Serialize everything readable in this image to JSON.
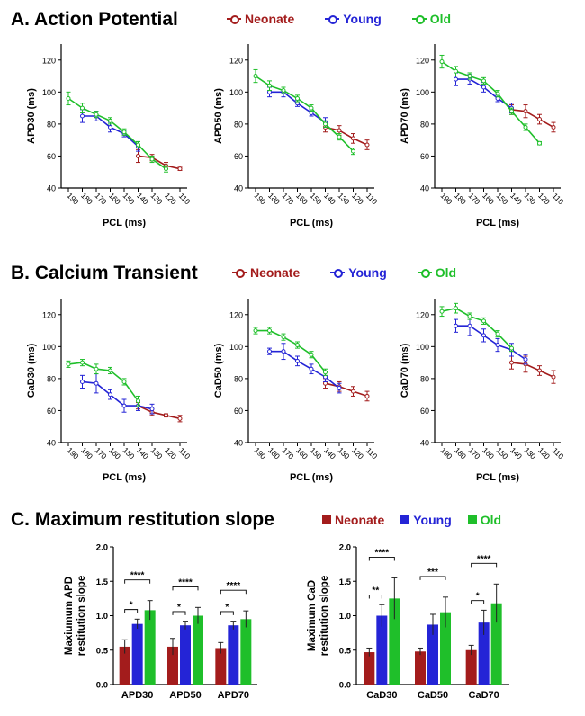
{
  "colors": {
    "neonate": "#a31c1c",
    "young": "#2424d6",
    "old": "#1fbf2a"
  },
  "sections": {
    "a": {
      "title": "A. Action Potential"
    },
    "b": {
      "title": "B. Calcium Transient"
    },
    "c": {
      "title": "C. Maximum restitution slope"
    }
  },
  "legends": {
    "lines": [
      {
        "label": "Neonate",
        "color": "#a31c1c"
      },
      {
        "label": "Young",
        "color": "#2424d6"
      },
      {
        "label": "Old",
        "color": "#1fbf2a"
      }
    ],
    "bars": [
      {
        "label": "Neonate",
        "color": "#a31c1c"
      },
      {
        "label": "Young",
        "color": "#2424d6"
      },
      {
        "label": "Old",
        "color": "#1fbf2a"
      }
    ]
  },
  "chart_data": [
    {
      "id": "apd30",
      "type": "line",
      "xlabel": "PCL (ms)",
      "ylabel": "APD30 (ms)",
      "categories": [
        "190",
        "180",
        "170",
        "160",
        "150",
        "140",
        "130",
        "120",
        "110"
      ],
      "ylim": [
        40,
        130
      ],
      "yticks": [
        40,
        60,
        80,
        100,
        120
      ],
      "series": [
        {
          "name": "Neonate",
          "color": "#a31c1c",
          "values": [
            null,
            null,
            null,
            null,
            null,
            60,
            59,
            54,
            52
          ],
          "err": [
            0,
            0,
            0,
            0,
            0,
            4,
            2,
            2,
            1
          ]
        },
        {
          "name": "Young",
          "color": "#2424d6",
          "values": [
            null,
            85,
            85,
            78,
            74,
            66,
            null,
            null,
            null
          ],
          "err": [
            0,
            4,
            3,
            3,
            2,
            3,
            0,
            0,
            0
          ]
        },
        {
          "name": "Old",
          "color": "#1fbf2a",
          "values": [
            96,
            90,
            86,
            82,
            75,
            67,
            58,
            52,
            null
          ],
          "err": [
            4,
            3,
            2,
            2,
            2,
            2,
            2,
            2,
            0
          ]
        }
      ]
    },
    {
      "id": "apd50",
      "type": "line",
      "xlabel": "PCL (ms)",
      "ylabel": "APD50 (ms)",
      "categories": [
        "190",
        "180",
        "170",
        "160",
        "150",
        "140",
        "130",
        "120",
        "110"
      ],
      "ylim": [
        40,
        130
      ],
      "yticks": [
        40,
        60,
        80,
        100,
        120
      ],
      "series": [
        {
          "name": "Neonate",
          "color": "#a31c1c",
          "values": [
            null,
            null,
            null,
            null,
            null,
            78,
            76,
            71,
            67
          ],
          "err": [
            0,
            0,
            0,
            0,
            0,
            3,
            3,
            3,
            3
          ]
        },
        {
          "name": "Young",
          "color": "#2424d6",
          "values": [
            null,
            100,
            100,
            93,
            87,
            81,
            null,
            null,
            null
          ],
          "err": [
            0,
            3,
            3,
            2,
            2,
            3,
            0,
            0,
            0
          ]
        },
        {
          "name": "Old",
          "color": "#1fbf2a",
          "values": [
            110,
            104,
            101,
            96,
            90,
            80,
            72,
            63,
            null
          ],
          "err": [
            4,
            3,
            2,
            2,
            2,
            2,
            2,
            2,
            0
          ]
        }
      ]
    },
    {
      "id": "apd70",
      "type": "line",
      "xlabel": "PCL (ms)",
      "ylabel": "APD70 (ms)",
      "categories": [
        "190",
        "180",
        "170",
        "160",
        "150",
        "140",
        "130",
        "120",
        "110"
      ],
      "ylim": [
        40,
        130
      ],
      "yticks": [
        40,
        60,
        80,
        100,
        120
      ],
      "series": [
        {
          "name": "Neonate",
          "color": "#a31c1c",
          "values": [
            null,
            null,
            null,
            null,
            null,
            89,
            88,
            83,
            78
          ],
          "err": [
            0,
            0,
            0,
            0,
            0,
            3,
            4,
            3,
            3
          ]
        },
        {
          "name": "Young",
          "color": "#2424d6",
          "values": [
            null,
            108,
            108,
            103,
            96,
            90,
            null,
            null,
            null
          ],
          "err": [
            0,
            4,
            3,
            3,
            2,
            3,
            0,
            0,
            0
          ]
        },
        {
          "name": "Old",
          "color": "#1fbf2a",
          "values": [
            119,
            113,
            110,
            107,
            99,
            88,
            78,
            68,
            null
          ],
          "err": [
            4,
            3,
            2,
            2,
            2,
            2,
            2,
            1,
            0
          ]
        }
      ]
    },
    {
      "id": "cad30",
      "type": "line",
      "xlabel": "PCL (ms)",
      "ylabel": "CaD30 (ms)",
      "categories": [
        "190",
        "180",
        "170",
        "160",
        "150",
        "140",
        "130",
        "120",
        "110"
      ],
      "ylim": [
        40,
        130
      ],
      "yticks": [
        40,
        60,
        80,
        100,
        120
      ],
      "series": [
        {
          "name": "Neonate",
          "color": "#a31c1c",
          "values": [
            null,
            null,
            null,
            null,
            null,
            63,
            59,
            57,
            55
          ],
          "err": [
            0,
            0,
            0,
            0,
            0,
            2,
            2,
            1,
            2
          ]
        },
        {
          "name": "Young",
          "color": "#2424d6",
          "values": [
            null,
            78,
            77,
            70,
            63,
            63,
            61,
            null,
            null
          ],
          "err": [
            0,
            4,
            6,
            3,
            4,
            3,
            3,
            0,
            0
          ]
        },
        {
          "name": "Old",
          "color": "#1fbf2a",
          "values": [
            89,
            90,
            86,
            85,
            78,
            66,
            null,
            null,
            null
          ],
          "err": [
            2,
            2,
            3,
            2,
            2,
            3,
            0,
            0,
            0
          ]
        }
      ]
    },
    {
      "id": "cad50",
      "type": "line",
      "xlabel": "PCL (ms)",
      "ylabel": "CaD50 (ms)",
      "categories": [
        "190",
        "180",
        "170",
        "160",
        "150",
        "140",
        "130",
        "120",
        "110"
      ],
      "ylim": [
        40,
        130
      ],
      "yticks": [
        40,
        60,
        80,
        100,
        120
      ],
      "series": [
        {
          "name": "Neonate",
          "color": "#a31c1c",
          "values": [
            null,
            null,
            null,
            null,
            null,
            77,
            75,
            72,
            69
          ],
          "err": [
            0,
            0,
            0,
            0,
            0,
            3,
            3,
            3,
            3
          ]
        },
        {
          "name": "Young",
          "color": "#2424d6",
          "values": [
            null,
            97,
            97,
            91,
            86,
            81,
            74,
            null,
            null
          ],
          "err": [
            0,
            2,
            5,
            3,
            3,
            3,
            3,
            0,
            0
          ]
        },
        {
          "name": "Old",
          "color": "#1fbf2a",
          "values": [
            110,
            110,
            106,
            101,
            95,
            84,
            null,
            null,
            null
          ],
          "err": [
            2,
            2,
            2,
            2,
            2,
            2,
            0,
            0,
            0
          ]
        }
      ]
    },
    {
      "id": "cad70",
      "type": "line",
      "xlabel": "PCL (ms)",
      "ylabel": "CaD70 (ms)",
      "categories": [
        "190",
        "180",
        "170",
        "160",
        "150",
        "140",
        "130",
        "120",
        "110"
      ],
      "ylim": [
        40,
        130
      ],
      "yticks": [
        40,
        60,
        80,
        100,
        120
      ],
      "series": [
        {
          "name": "Neonate",
          "color": "#a31c1c",
          "values": [
            null,
            null,
            null,
            null,
            null,
            90,
            89,
            85,
            81
          ],
          "err": [
            0,
            0,
            0,
            0,
            0,
            4,
            5,
            3,
            4
          ]
        },
        {
          "name": "Young",
          "color": "#2424d6",
          "values": [
            null,
            113,
            113,
            107,
            101,
            98,
            92,
            null,
            null
          ],
          "err": [
            0,
            4,
            6,
            4,
            4,
            4,
            3,
            0,
            0
          ]
        },
        {
          "name": "Old",
          "color": "#1fbf2a",
          "values": [
            122,
            124,
            119,
            116,
            108,
            99,
            null,
            null,
            null
          ],
          "err": [
            3,
            3,
            2,
            2,
            2,
            2,
            0,
            0,
            0
          ]
        }
      ]
    },
    {
      "id": "apd-slope",
      "type": "bar",
      "ylabel": "Maxiumum APD restitution slope",
      "ylabel_lines": [
        "Maxiumum APD",
        "restitution slope"
      ],
      "categories": [
        "APD30",
        "APD50",
        "APD70"
      ],
      "ylim": [
        0,
        2.0
      ],
      "yticks": [
        0.0,
        0.5,
        1.0,
        1.5,
        2.0
      ],
      "series": [
        {
          "name": "Neonate",
          "color": "#a31c1c",
          "values": [
            0.55,
            0.55,
            0.53
          ],
          "err": [
            0.1,
            0.12,
            0.08
          ]
        },
        {
          "name": "Young",
          "color": "#2424d6",
          "values": [
            0.88,
            0.86,
            0.86
          ],
          "err": [
            0.07,
            0.06,
            0.06
          ]
        },
        {
          "name": "Old",
          "color": "#1fbf2a",
          "values": [
            1.08,
            1.0,
            0.95
          ],
          "err": [
            0.14,
            0.12,
            0.12
          ]
        }
      ],
      "annotations": [
        {
          "group": 0,
          "from": 0,
          "to": 1,
          "label": "*"
        },
        {
          "group": 0,
          "from": 0,
          "to": 2,
          "label": "****"
        },
        {
          "group": 1,
          "from": 0,
          "to": 1,
          "label": "*"
        },
        {
          "group": 1,
          "from": 0,
          "to": 2,
          "label": "****"
        },
        {
          "group": 2,
          "from": 0,
          "to": 1,
          "label": "*"
        },
        {
          "group": 2,
          "from": 0,
          "to": 2,
          "label": "****"
        }
      ]
    },
    {
      "id": "cad-slope",
      "type": "bar",
      "ylabel": "Maximum CaD restitution slope",
      "ylabel_lines": [
        "Maximum CaD",
        "restitution slope"
      ],
      "categories": [
        "CaD30",
        "CaD50",
        "CaD70"
      ],
      "ylim": [
        0,
        2.0
      ],
      "yticks": [
        0.0,
        0.5,
        1.0,
        1.5,
        2.0
      ],
      "series": [
        {
          "name": "Neonate",
          "color": "#a31c1c",
          "values": [
            0.47,
            0.48,
            0.5
          ],
          "err": [
            0.06,
            0.05,
            0.07
          ]
        },
        {
          "name": "Young",
          "color": "#2424d6",
          "values": [
            1.0,
            0.87,
            0.9
          ],
          "err": [
            0.16,
            0.15,
            0.18
          ]
        },
        {
          "name": "Old",
          "color": "#1fbf2a",
          "values": [
            1.25,
            1.05,
            1.18
          ],
          "err": [
            0.3,
            0.22,
            0.28
          ]
        }
      ],
      "annotations": [
        {
          "group": 0,
          "from": 0,
          "to": 1,
          "label": "**"
        },
        {
          "group": 0,
          "from": 0,
          "to": 2,
          "label": "****"
        },
        {
          "group": 1,
          "from": 0,
          "to": 2,
          "label": "***"
        },
        {
          "group": 2,
          "from": 0,
          "to": 1,
          "label": "*"
        },
        {
          "group": 2,
          "from": 0,
          "to": 2,
          "label": "****"
        }
      ]
    }
  ]
}
